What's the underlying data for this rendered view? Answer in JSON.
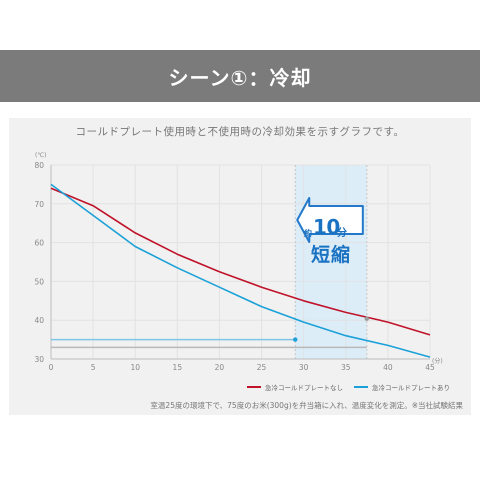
{
  "banner": {
    "title": "シーン①：冷却"
  },
  "chart_data": {
    "type": "line",
    "title": "コールドプレート使用時と不使用時の冷却効果を示すグラフです。",
    "xlabel": "(分)",
    "ylabel": "(℃)",
    "xlim": [
      0,
      45
    ],
    "ylim": [
      30,
      80
    ],
    "xticks": [
      0,
      5,
      10,
      15,
      20,
      25,
      30,
      35,
      40,
      45
    ],
    "yticks": [
      30,
      40,
      50,
      60,
      70,
      80
    ],
    "grid": true,
    "legend_position": "bottom-right",
    "series": [
      {
        "name": "急冷コールドプレートなし",
        "color": "#c0132a",
        "x": [
          0,
          5,
          10,
          15,
          20,
          25,
          30,
          35,
          40,
          45
        ],
        "y": [
          74,
          69.5,
          62.5,
          57,
          52.5,
          48.5,
          45,
          42,
          39.5,
          36.2
        ]
      },
      {
        "name": "急冷コールドプレートあり",
        "color": "#1ba1d8",
        "x": [
          0,
          5,
          10,
          15,
          20,
          25,
          30,
          35,
          40,
          45
        ],
        "y": [
          75,
          67,
          59,
          53.5,
          48.5,
          43.5,
          39.5,
          36,
          33.5,
          30.5
        ]
      }
    ],
    "reference_lines": [
      {
        "y": 35,
        "x_end": 29,
        "color": "#7ec5e8"
      },
      {
        "y": 33,
        "x_end": 37.5,
        "color": "#b9b9b9"
      }
    ],
    "highlight_band": {
      "x": [
        29,
        37.5
      ],
      "color": "#dcedf8"
    },
    "annotation": {
      "prefix": "約",
      "value": "10",
      "unit": "分",
      "label": "短縮"
    },
    "footnote": "室温25度の環境下で、75度のお米(300g)を弁当箱に入れ、温度変化を測定。※当社試験結果"
  }
}
